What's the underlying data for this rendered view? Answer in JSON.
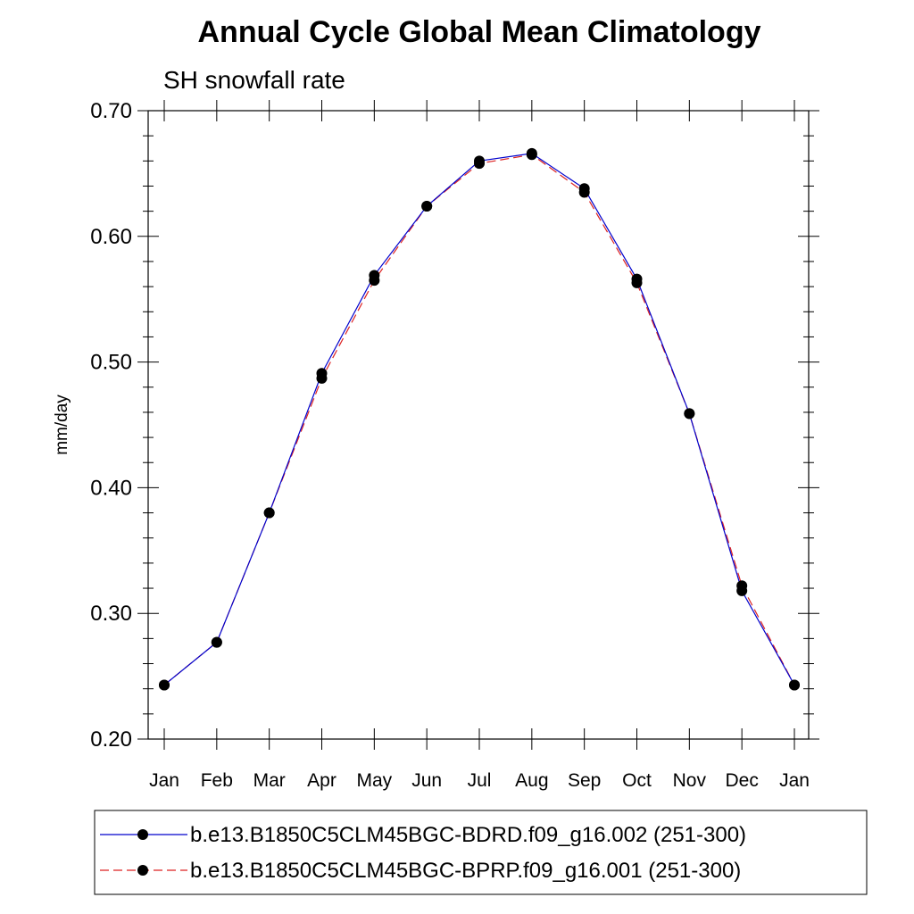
{
  "chart_data": {
    "type": "line",
    "title": "Annual Cycle Global Mean Climatology",
    "subtitle": "SH snowfall rate",
    "xlabel": "",
    "ylabel": "mm/day",
    "categories": [
      "Jan",
      "Feb",
      "Mar",
      "Apr",
      "May",
      "Jun",
      "Jul",
      "Aug",
      "Sep",
      "Oct",
      "Nov",
      "Dec",
      "Jan"
    ],
    "ylim": [
      0.2,
      0.7
    ],
    "yticks": [
      "0.20",
      "0.30",
      "0.40",
      "0.50",
      "0.60",
      "0.70"
    ],
    "grid": false,
    "legend_position": "bottom",
    "series": [
      {
        "name": "b.e13.B1850C5CLM45BGC-BDRD.f09_g16.002 (251-300)",
        "color": "#0000cc",
        "dash": "solid",
        "values": [
          0.243,
          0.277,
          0.38,
          0.491,
          0.569,
          0.624,
          0.66,
          0.666,
          0.638,
          0.566,
          0.459,
          0.318,
          0.243
        ]
      },
      {
        "name": "b.e13.B1850C5CLM45BGC-BPRP.f09_g16.001 (251-300)",
        "color": "#dd2222",
        "dash": "dashed",
        "values": [
          0.243,
          0.277,
          0.38,
          0.487,
          0.565,
          0.624,
          0.658,
          0.665,
          0.635,
          0.563,
          0.459,
          0.322,
          0.243
        ]
      }
    ]
  }
}
